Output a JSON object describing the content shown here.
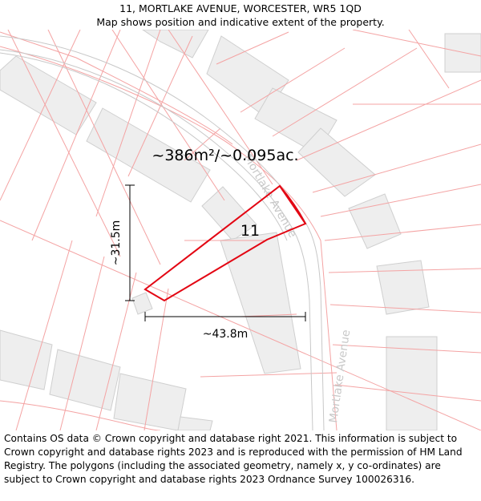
{
  "header": {
    "address": "11, MORTLAKE AVENUE, WORCESTER, WR5 1QD",
    "subtitle": "Map shows position and indicative extent of the property."
  },
  "map": {
    "area_label": "~386m²/~0.095ac.",
    "plot_number": "11",
    "height_label": "~31.5m",
    "width_label": "~43.8m",
    "road_labels": [
      "Mortlake Avenue",
      "Mortlake Avenue"
    ],
    "colors": {
      "boundary": "#e30613",
      "parcel_lines": "#f4a3a3",
      "buildings_fill": "#eeeeee",
      "buildings_stroke": "#cfcfcf",
      "road": "#c8c8c8"
    }
  },
  "footer": {
    "copyright": "Contains OS data © Crown copyright and database right 2021. This information is subject to Crown copyright and database rights 2023 and is reproduced with the permission of HM Land Registry. The polygons (including the associated geometry, namely x, y co-ordinates) are subject to Crown copyright and database rights 2023 Ordnance Survey 100026316."
  }
}
